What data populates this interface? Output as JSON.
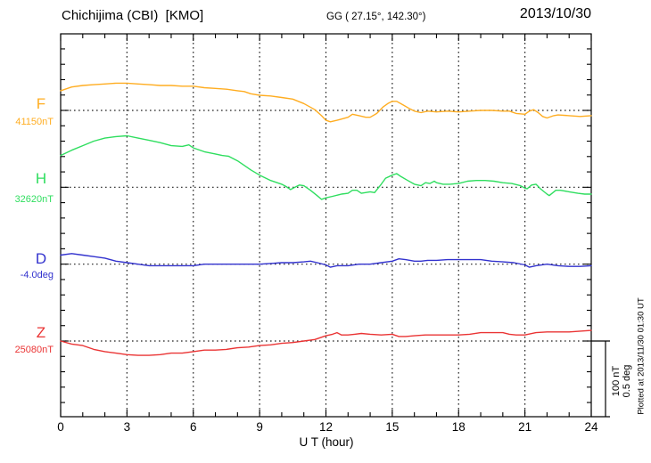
{
  "header": {
    "station": "Chichijima (CBI)  [KMO]",
    "coords": "GG ( 27.15°, 142.30°)",
    "date": "2013/10/30"
  },
  "axis": {
    "xlabel": "U T (hour)"
  },
  "side": {
    "scale_line1": "100 nT",
    "scale_line2": "0.5 deg",
    "plotted_at": "Plotted at 2013/11/30 01:30 UT"
  },
  "chart_data": {
    "type": "line",
    "title": "Chichijima (CBI) [KMO] magnetogram 2013/10/30",
    "xlabel": "U T (hour)",
    "x_range": [
      0,
      24
    ],
    "x_ticks_major": [
      0,
      3,
      6,
      9,
      12,
      15,
      18,
      21,
      24
    ],
    "grid": "dotted vertical at 3h steps, dotted horizontal at each component baseline",
    "scale_bar": {
      "nT": 100,
      "deg": 0.5
    },
    "series": [
      {
        "name": "F",
        "label": "F",
        "units": "nT",
        "reference": 41150,
        "reference_label": "41150nT",
        "color": "#FFAD21",
        "points": [
          [
            0,
            41176
          ],
          [
            0.5,
            41181
          ],
          [
            1,
            41183
          ],
          [
            1.5,
            41184
          ],
          [
            2,
            41185
          ],
          [
            2.5,
            41186
          ],
          [
            3,
            41186
          ],
          [
            3.5,
            41185
          ],
          [
            4,
            41184
          ],
          [
            4.5,
            41183
          ],
          [
            5,
            41183
          ],
          [
            5.5,
            41182
          ],
          [
            6,
            41182
          ],
          [
            6.5,
            41180
          ],
          [
            7,
            41179
          ],
          [
            7.5,
            41178
          ],
          [
            8,
            41176
          ],
          [
            8.3,
            41175
          ],
          [
            8.6,
            41172
          ],
          [
            9,
            41170
          ],
          [
            9.5,
            41169
          ],
          [
            10,
            41167
          ],
          [
            10.5,
            41165
          ],
          [
            11,
            41159
          ],
          [
            11.5,
            41151
          ],
          [
            11.8,
            41143
          ],
          [
            12,
            41137
          ],
          [
            12.2,
            41135
          ],
          [
            12.5,
            41137
          ],
          [
            13,
            41141
          ],
          [
            13.2,
            41145
          ],
          [
            13.5,
            41143
          ],
          [
            13.8,
            41141
          ],
          [
            14,
            41141
          ],
          [
            14.3,
            41146
          ],
          [
            14.6,
            41155
          ],
          [
            14.8,
            41159
          ],
          [
            15,
            41162
          ],
          [
            15.2,
            41162
          ],
          [
            15.5,
            41157
          ],
          [
            15.8,
            41152
          ],
          [
            16,
            41149
          ],
          [
            16.3,
            41147
          ],
          [
            16.6,
            41149
          ],
          [
            17,
            41148
          ],
          [
            17.5,
            41149
          ],
          [
            18,
            41148
          ],
          [
            18.5,
            41149
          ],
          [
            19,
            41150
          ],
          [
            19.5,
            41150
          ],
          [
            20,
            41149
          ],
          [
            20.3,
            41149
          ],
          [
            20.6,
            41146
          ],
          [
            21,
            41145
          ],
          [
            21.2,
            41149
          ],
          [
            21.4,
            41151
          ],
          [
            21.6,
            41147
          ],
          [
            21.8,
            41142
          ],
          [
            22,
            41140
          ],
          [
            22.3,
            41143
          ],
          [
            22.5,
            41144
          ],
          [
            23,
            41143
          ],
          [
            23.5,
            41142
          ],
          [
            24,
            41143
          ]
        ]
      },
      {
        "name": "H",
        "label": "H",
        "units": "nT",
        "reference": 32620,
        "reference_label": "32620nT",
        "color": "#2FDE5F",
        "points": [
          [
            0,
            32662
          ],
          [
            0.5,
            32669
          ],
          [
            1,
            32675
          ],
          [
            1.5,
            32681
          ],
          [
            2,
            32685
          ],
          [
            2.5,
            32687
          ],
          [
            3,
            32688
          ],
          [
            3.5,
            32685
          ],
          [
            4,
            32682
          ],
          [
            4.5,
            32679
          ],
          [
            5,
            32675
          ],
          [
            5.5,
            32674
          ],
          [
            5.8,
            32676
          ],
          [
            6,
            32672
          ],
          [
            6.5,
            32667
          ],
          [
            7,
            32664
          ],
          [
            7.3,
            32662
          ],
          [
            7.6,
            32661
          ],
          [
            8,
            32655
          ],
          [
            8.3,
            32649
          ],
          [
            8.6,
            32643
          ],
          [
            9,
            32636
          ],
          [
            9.5,
            32629
          ],
          [
            10,
            32624
          ],
          [
            10.2,
            32621
          ],
          [
            10.4,
            32617
          ],
          [
            10.6,
            32620
          ],
          [
            10.8,
            32623
          ],
          [
            11,
            32622
          ],
          [
            11.3,
            32616
          ],
          [
            11.6,
            32609
          ],
          [
            11.8,
            32604
          ],
          [
            12,
            32606
          ],
          [
            12.3,
            32608
          ],
          [
            12.7,
            32611
          ],
          [
            13,
            32612
          ],
          [
            13.2,
            32616
          ],
          [
            13.4,
            32616
          ],
          [
            13.6,
            32612
          ],
          [
            14,
            32614
          ],
          [
            14.2,
            32613
          ],
          [
            14.5,
            32624
          ],
          [
            14.7,
            32632
          ],
          [
            15,
            32636
          ],
          [
            15.2,
            32638
          ],
          [
            15.4,
            32634
          ],
          [
            15.7,
            32629
          ],
          [
            16,
            32624
          ],
          [
            16.3,
            32622
          ],
          [
            16.5,
            32626
          ],
          [
            16.7,
            32625
          ],
          [
            16.9,
            32628
          ],
          [
            17,
            32626
          ],
          [
            17.3,
            32624
          ],
          [
            17.6,
            32624
          ],
          [
            18,
            32625
          ],
          [
            18.4,
            32628
          ],
          [
            18.8,
            32629
          ],
          [
            19.2,
            32629
          ],
          [
            19.6,
            32628
          ],
          [
            20,
            32626
          ],
          [
            20.4,
            32625
          ],
          [
            20.8,
            32622
          ],
          [
            21,
            32619
          ],
          [
            21.1,
            32618
          ],
          [
            21.3,
            32623
          ],
          [
            21.5,
            32624
          ],
          [
            21.7,
            32618
          ],
          [
            22,
            32611
          ],
          [
            22.1,
            32609
          ],
          [
            22.4,
            32616
          ],
          [
            22.6,
            32616
          ],
          [
            23,
            32614
          ],
          [
            23.4,
            32612
          ],
          [
            23.7,
            32611
          ],
          [
            24,
            32611
          ]
        ]
      },
      {
        "name": "D",
        "label": "D",
        "units": "deg",
        "reference": -4.0,
        "reference_label": "-4.0deg",
        "color": "#3232CE",
        "points": [
          [
            0,
            -3.94
          ],
          [
            0.5,
            -3.93
          ],
          [
            1,
            -3.94
          ],
          [
            1.5,
            -3.95
          ],
          [
            2,
            -3.96
          ],
          [
            2.5,
            -3.98
          ],
          [
            3,
            -3.99
          ],
          [
            3.5,
            -4.0
          ],
          [
            4,
            -4.01
          ],
          [
            5,
            -4.01
          ],
          [
            6,
            -4.01
          ],
          [
            6.5,
            -4.0
          ],
          [
            7,
            -4.0
          ],
          [
            7.5,
            -4.0
          ],
          [
            8,
            -4.0
          ],
          [
            8.5,
            -4.0
          ],
          [
            9,
            -4.0
          ],
          [
            9.5,
            -3.995
          ],
          [
            10,
            -3.99
          ],
          [
            10.5,
            -3.99
          ],
          [
            11,
            -3.985
          ],
          [
            11.3,
            -3.98
          ],
          [
            11.6,
            -3.99
          ],
          [
            12,
            -4.005
          ],
          [
            12.2,
            -4.02
          ],
          [
            12.5,
            -4.01
          ],
          [
            13,
            -4.01
          ],
          [
            13.5,
            -4.0
          ],
          [
            14,
            -4.0
          ],
          [
            14.5,
            -3.99
          ],
          [
            15,
            -3.98
          ],
          [
            15.3,
            -3.965
          ],
          [
            15.6,
            -3.97
          ],
          [
            16,
            -3.98
          ],
          [
            16.3,
            -3.98
          ],
          [
            16.6,
            -3.975
          ],
          [
            17,
            -3.975
          ],
          [
            17.5,
            -3.97
          ],
          [
            18,
            -3.97
          ],
          [
            18.5,
            -3.97
          ],
          [
            19,
            -3.97
          ],
          [
            19.5,
            -3.98
          ],
          [
            20,
            -3.985
          ],
          [
            20.5,
            -3.99
          ],
          [
            21,
            -4.005
          ],
          [
            21.2,
            -4.02
          ],
          [
            21.5,
            -4.01
          ],
          [
            22,
            -4.0
          ],
          [
            22.5,
            -4.01
          ],
          [
            23,
            -4.015
          ],
          [
            23.5,
            -4.015
          ],
          [
            24,
            -4.01
          ]
        ]
      },
      {
        "name": "Z",
        "label": "Z",
        "units": "nT",
        "reference": 25080,
        "reference_label": "25080nT",
        "color": "#EA3434",
        "points": [
          [
            0,
            25080
          ],
          [
            0.5,
            25076
          ],
          [
            1,
            25074
          ],
          [
            1.5,
            25069
          ],
          [
            2,
            25066
          ],
          [
            2.5,
            25064
          ],
          [
            3,
            25062
          ],
          [
            3.5,
            25061
          ],
          [
            4,
            25061
          ],
          [
            4.5,
            25062
          ],
          [
            5,
            25064
          ],
          [
            5.5,
            25064
          ],
          [
            6,
            25066
          ],
          [
            6.5,
            25068
          ],
          [
            7,
            25068
          ],
          [
            7.5,
            25069
          ],
          [
            8,
            25071
          ],
          [
            8.5,
            25072
          ],
          [
            9,
            25074
          ],
          [
            9.5,
            25075
          ],
          [
            10,
            25077
          ],
          [
            10.5,
            25078
          ],
          [
            11,
            25080
          ],
          [
            11.5,
            25082
          ],
          [
            12,
            25087
          ],
          [
            12.3,
            25089
          ],
          [
            12.5,
            25091
          ],
          [
            12.7,
            25088
          ],
          [
            13,
            25088
          ],
          [
            13.3,
            25089
          ],
          [
            13.6,
            25090
          ],
          [
            14,
            25089
          ],
          [
            14.5,
            25088
          ],
          [
            15,
            25089
          ],
          [
            15.3,
            25086
          ],
          [
            15.6,
            25086
          ],
          [
            16,
            25087
          ],
          [
            16.5,
            25088
          ],
          [
            17,
            25088
          ],
          [
            17.5,
            25088
          ],
          [
            18,
            25088
          ],
          [
            18.5,
            25089
          ],
          [
            19,
            25091
          ],
          [
            19.5,
            25091
          ],
          [
            20,
            25091
          ],
          [
            20.3,
            25089
          ],
          [
            20.6,
            25088
          ],
          [
            21,
            25088
          ],
          [
            21.5,
            25091
          ],
          [
            22,
            25092
          ],
          [
            22.5,
            25092
          ],
          [
            23,
            25092
          ],
          [
            23.5,
            25093
          ],
          [
            24,
            25094
          ]
        ]
      }
    ]
  }
}
